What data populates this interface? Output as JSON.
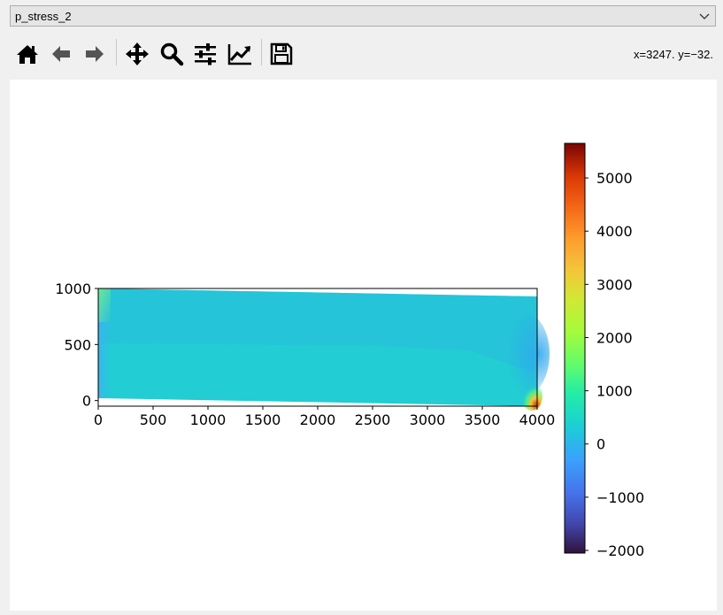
{
  "dropdown": {
    "value": "p_stress_2"
  },
  "toolbar": {
    "buttons": [
      {
        "name": "home",
        "icon": "home-icon"
      },
      {
        "name": "back",
        "icon": "arrow-left-icon"
      },
      {
        "name": "forward",
        "icon": "arrow-right-icon"
      },
      {
        "name": "pan",
        "icon": "move-icon"
      },
      {
        "name": "zoom",
        "icon": "zoom-icon"
      },
      {
        "name": "configure-subplots",
        "icon": "sliders-icon"
      },
      {
        "name": "edit-axis",
        "icon": "line-chart-icon"
      },
      {
        "name": "save",
        "icon": "save-icon"
      }
    ],
    "coords": "x=3247.   y=−32."
  },
  "chart_data": {
    "type": "heatmap",
    "x_ticks": [
      "0",
      "500",
      "1000",
      "1500",
      "2000",
      "2500",
      "3000",
      "3500",
      "4000"
    ],
    "y_ticks": [
      "1000",
      "500",
      "0"
    ],
    "xlim": [
      0,
      4000
    ],
    "ylim": [
      -50,
      1000
    ],
    "colorbar": {
      "colormap": "turbo",
      "range": [
        -2050,
        5650
      ],
      "ticks": [
        "5000",
        "4000",
        "3000",
        "2000",
        "1000",
        "0",
        "−1000",
        "−2000"
      ]
    },
    "colors": {
      "background": "#22cdd3",
      "upper_band": "#28bedc",
      "hot_corner": "#d03a10"
    }
  }
}
